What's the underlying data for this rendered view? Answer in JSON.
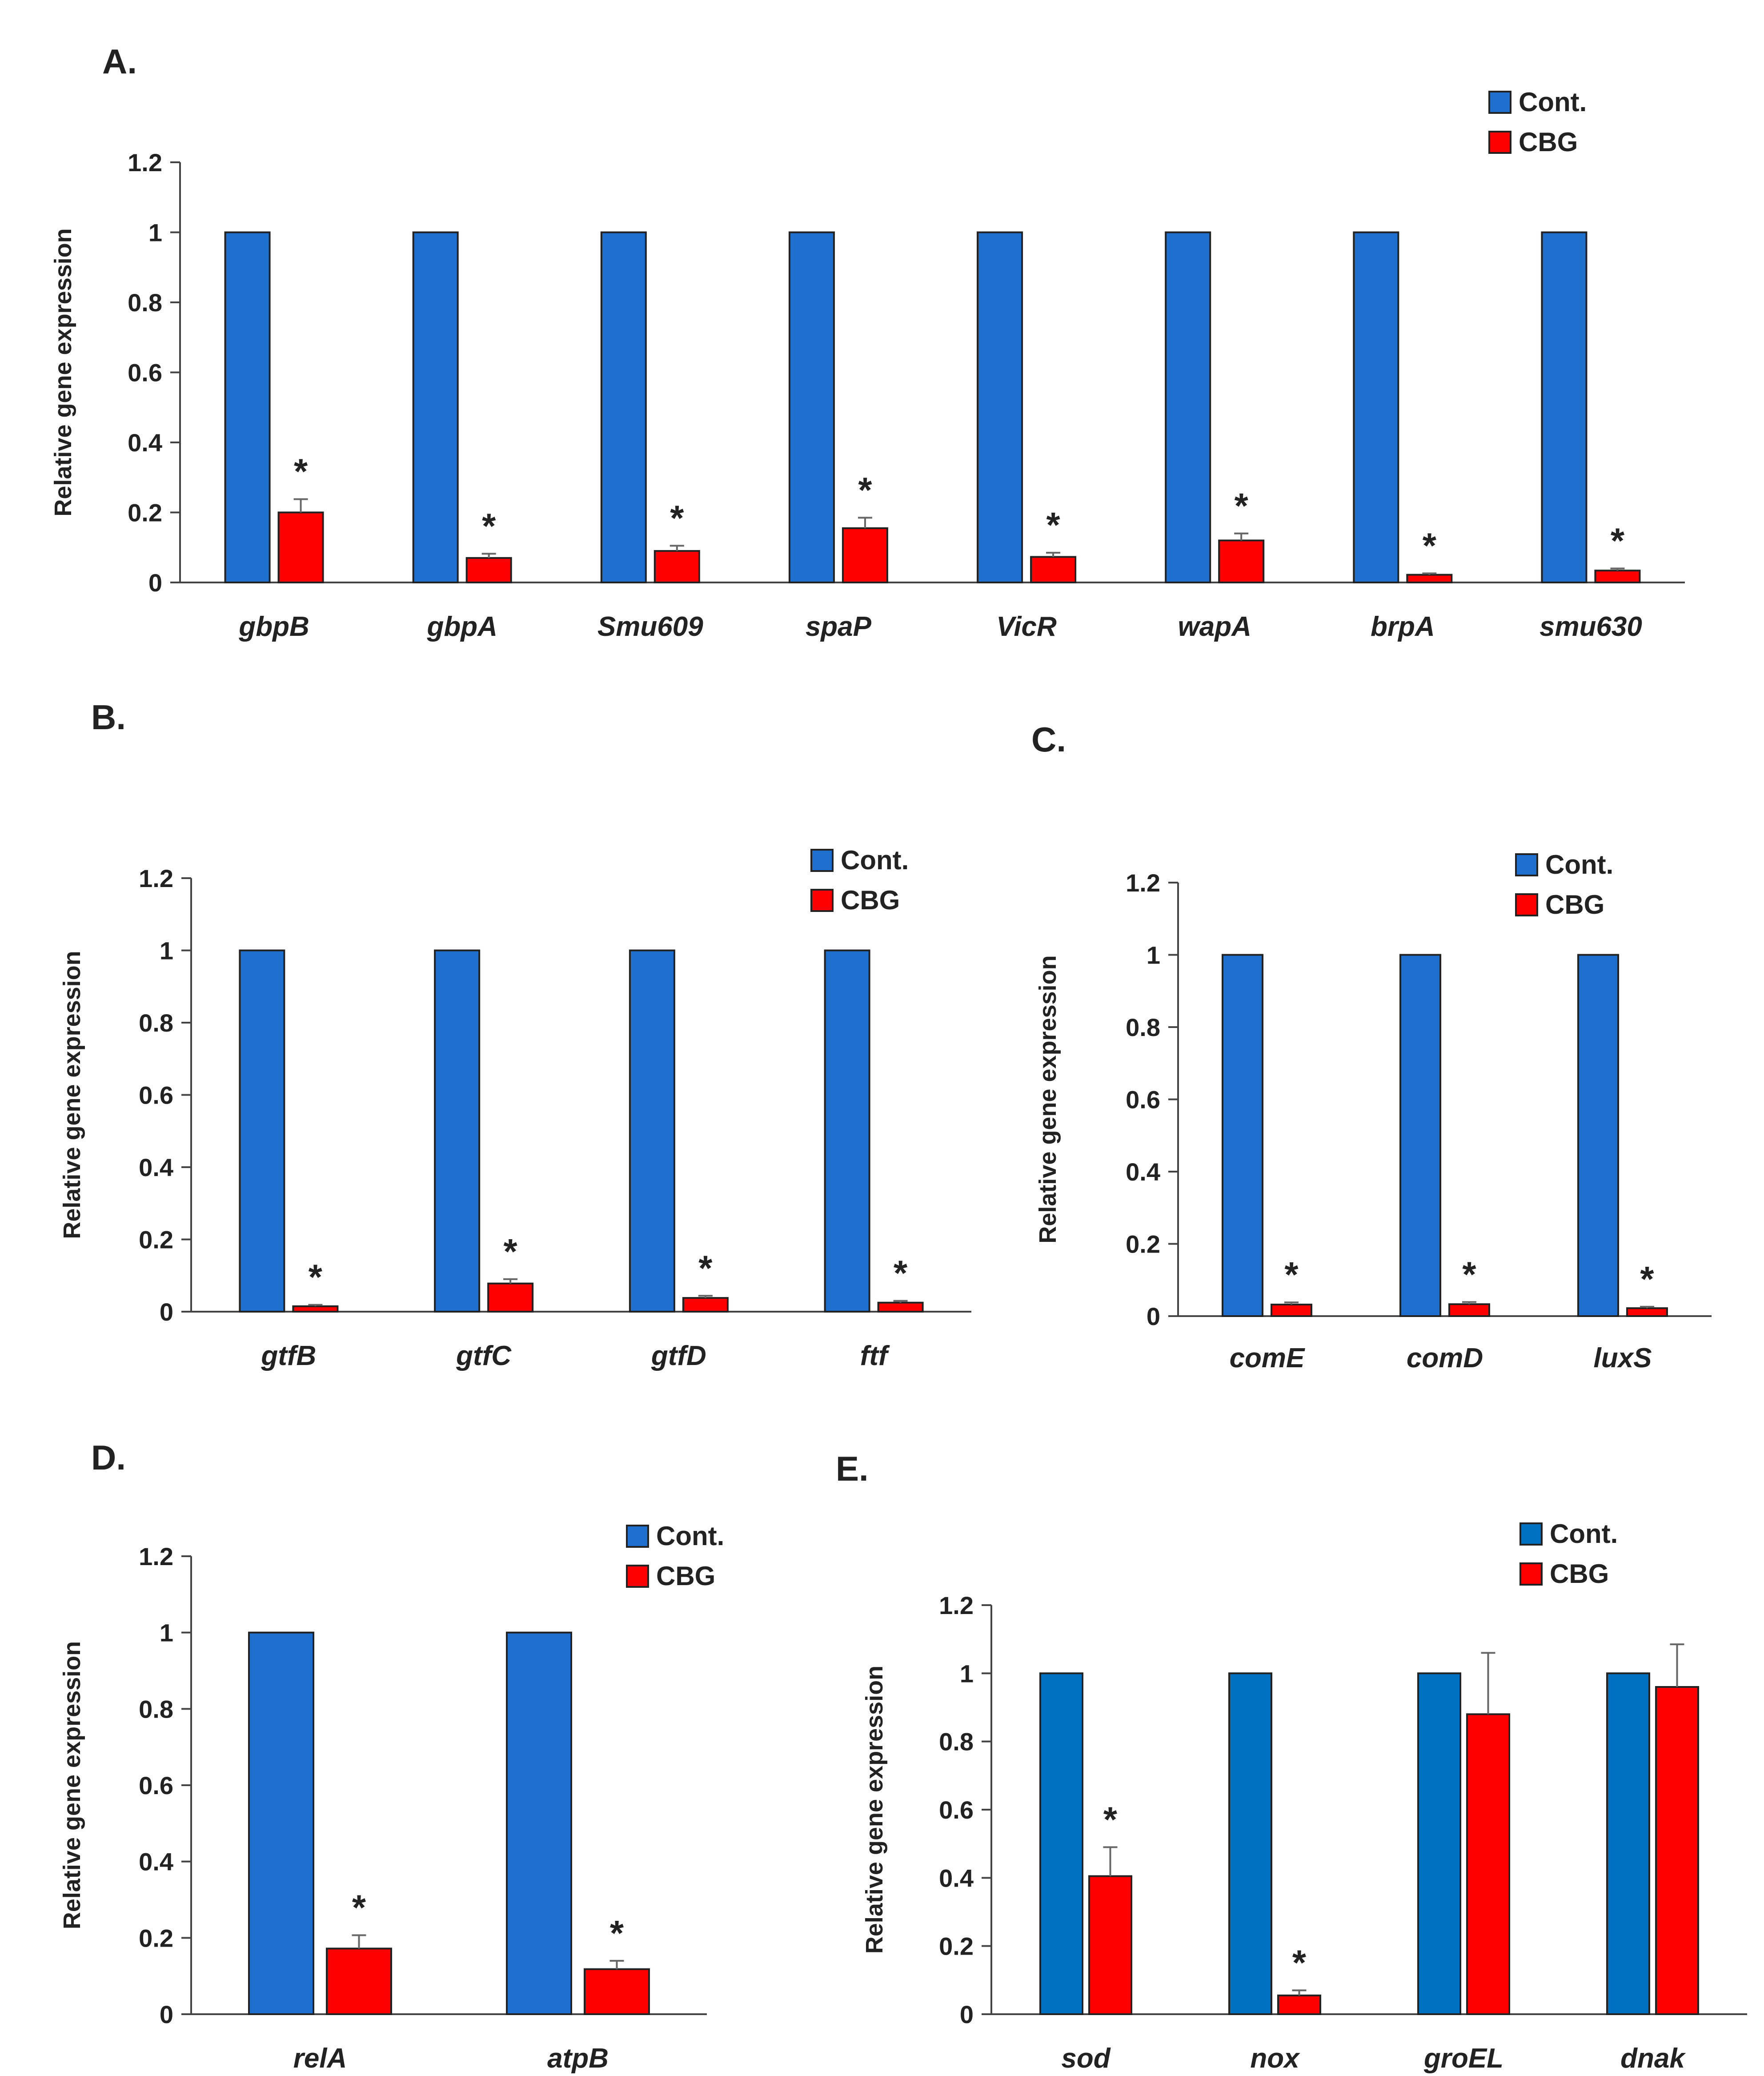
{
  "figure_title": "",
  "chart_data": [
    {
      "panel": "A.",
      "type": "bar",
      "ylabel": "Relative gene expression",
      "ylim": [
        0,
        1.2
      ],
      "yticks": [
        "0",
        "0.2",
        "0.4",
        "0.6",
        "0.8",
        "1",
        "1.2"
      ],
      "legend_position": "top-right",
      "categories": [
        "gbpB",
        "gbpA",
        "Smu609",
        "spaP",
        "VicR",
        "wapA",
        "brpA",
        "smu630"
      ],
      "series": [
        {
          "name": "Cont.",
          "color": "#1f6fcf",
          "values": [
            1,
            1,
            1,
            1,
            1,
            1,
            1,
            1
          ],
          "errors": [
            0,
            0,
            0,
            0,
            0,
            0,
            0,
            0
          ]
        },
        {
          "name": "CBG",
          "color": "#ff0000",
          "values": [
            0.2,
            0.07,
            0.09,
            0.155,
            0.073,
            0.12,
            0.022,
            0.034
          ],
          "errors": [
            0.038,
            0.012,
            0.015,
            0.03,
            0.012,
            0.02,
            0.004,
            0.006
          ]
        }
      ],
      "significance": [
        "*",
        "*",
        "*",
        "*",
        "*",
        "*",
        "*",
        "*"
      ]
    },
    {
      "panel": "B.",
      "type": "bar",
      "ylabel": "Relative gene expression",
      "ylim": [
        0,
        1.2
      ],
      "yticks": [
        "0",
        "0.2",
        "0.4",
        "0.6",
        "0.8",
        "1",
        "1.2"
      ],
      "legend_position": "top-right",
      "categories": [
        "gtfB",
        "gtfC",
        "gtfD",
        "ftf"
      ],
      "series": [
        {
          "name": "Cont.",
          "color": "#1f6fcf",
          "values": [
            1,
            1,
            1,
            1
          ],
          "errors": [
            0,
            0,
            0,
            0
          ]
        },
        {
          "name": "CBG",
          "color": "#ff0000",
          "values": [
            0.015,
            0.078,
            0.038,
            0.025
          ],
          "errors": [
            0.004,
            0.012,
            0.006,
            0.005
          ]
        }
      ],
      "significance": [
        "*",
        "*",
        "*",
        "*"
      ]
    },
    {
      "panel": "C.",
      "type": "bar",
      "ylabel": "Relative gene expression",
      "ylim": [
        0,
        1.2
      ],
      "yticks": [
        "0",
        "0.2",
        "0.4",
        "0.6",
        "0.8",
        "1",
        "1.2"
      ],
      "legend_position": "top-right",
      "categories": [
        "comE",
        "comD",
        "luxS"
      ],
      "series": [
        {
          "name": "Cont.",
          "color": "#1f6fcf",
          "values": [
            1,
            1,
            1
          ],
          "errors": [
            0,
            0,
            0
          ]
        },
        {
          "name": "CBG",
          "color": "#ff0000",
          "values": [
            0.032,
            0.033,
            0.022
          ],
          "errors": [
            0.006,
            0.006,
            0.004
          ]
        }
      ],
      "significance": [
        "*",
        "*",
        "*"
      ]
    },
    {
      "panel": "D.",
      "type": "bar",
      "ylabel": "Relative gene expression",
      "ylim": [
        0,
        1.2
      ],
      "yticks": [
        "0",
        "0.2",
        "0.4",
        "0.6",
        "0.8",
        "1",
        "1.2"
      ],
      "legend_position": "top-right",
      "categories": [
        "relA",
        "atpB"
      ],
      "series": [
        {
          "name": "Cont.",
          "color": "#1f6fcf",
          "values": [
            1,
            1
          ],
          "errors": [
            0,
            0
          ]
        },
        {
          "name": "CBG",
          "color": "#ff0000",
          "values": [
            0.172,
            0.118
          ],
          "errors": [
            0.035,
            0.022
          ]
        }
      ],
      "significance": [
        "*",
        "*"
      ]
    },
    {
      "panel": "E.",
      "type": "bar",
      "ylabel": "Relative gene expression",
      "ylim": [
        0,
        1.2
      ],
      "yticks": [
        "0",
        "0.2",
        "0.4",
        "0.6",
        "0.8",
        "1",
        "1.2"
      ],
      "legend_position": "top-right",
      "categories": [
        "sod",
        "nox",
        "groEL",
        "dnak"
      ],
      "series": [
        {
          "name": "Cont.",
          "color": "#0070c0",
          "values": [
            1,
            1,
            1,
            1
          ],
          "errors": [
            0,
            0,
            0,
            0
          ]
        },
        {
          "name": "CBG",
          "color": "#ff0000",
          "values": [
            0.405,
            0.055,
            0.88,
            0.96
          ],
          "errors": [
            0.085,
            0.015,
            0.18,
            0.125
          ]
        }
      ],
      "significance": [
        "*",
        "*",
        "",
        ""
      ]
    }
  ]
}
